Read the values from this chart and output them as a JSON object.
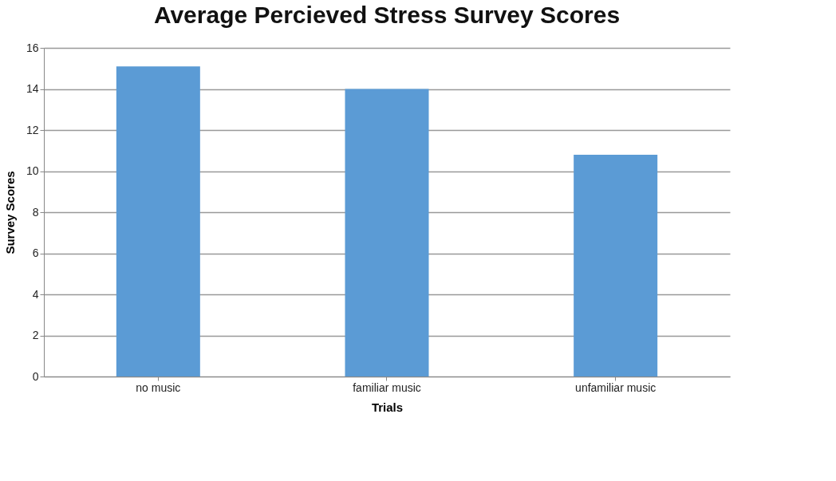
{
  "chart_data": {
    "type": "bar",
    "title": "Average Percieved Stress Survey Scores",
    "xlabel": "Trials",
    "ylabel": "Survey Scores",
    "categories": [
      "no music",
      "familiar music",
      "unfamiliar music"
    ],
    "values": [
      15.1,
      14.0,
      10.8
    ],
    "color": "#5b9bd5",
    "ylim": [
      0,
      16
    ],
    "yticks": [
      0,
      2,
      4,
      6,
      8,
      10,
      12,
      14,
      16
    ],
    "grid": "y"
  }
}
